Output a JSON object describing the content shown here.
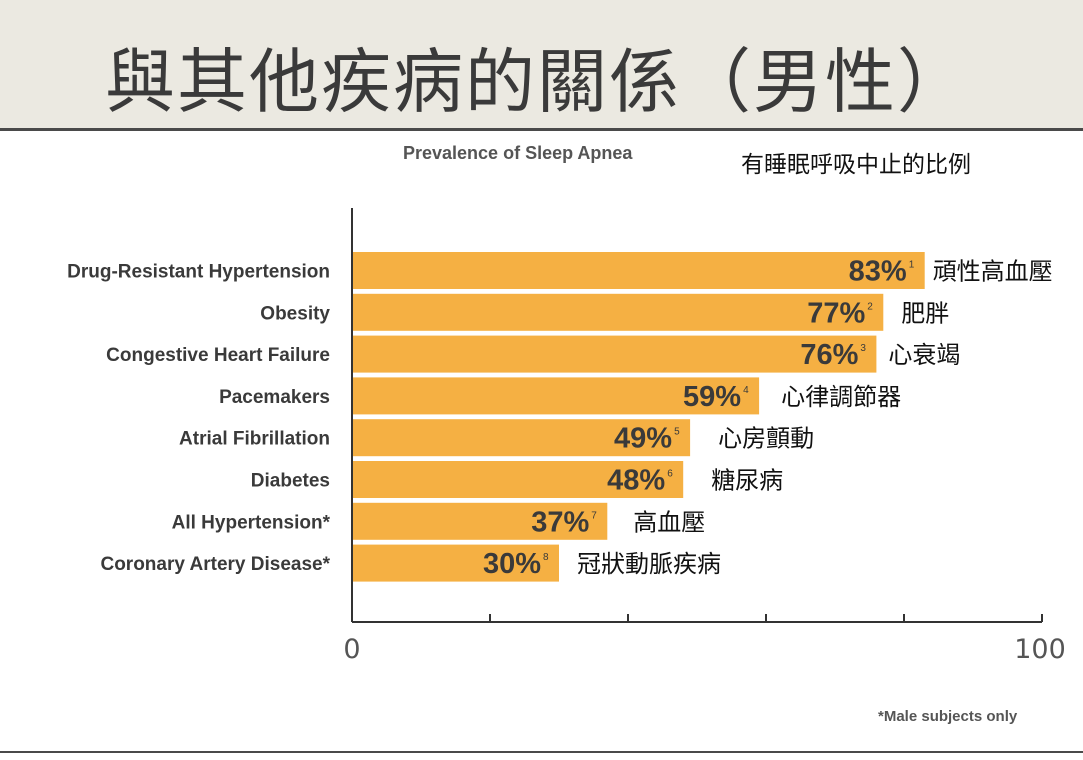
{
  "slide": {
    "title": "與其他疾病的關係（男性）"
  },
  "chart_data": {
    "type": "bar",
    "orientation": "horizontal",
    "title": "Prevalence of Sleep Apnea",
    "subtitle": "有睡眠呼吸中止的比例",
    "categories": [
      "Drug-Resistant Hypertension",
      "Obesity",
      "Congestive Heart Failure",
      "Pacemakers",
      "Atrial Fibrillation",
      "Diabetes",
      "All Hypertension*",
      "Coronary Artery Disease*"
    ],
    "categories_zh": [
      "頑性高血壓",
      "肥胖",
      "心衰竭",
      "心律調節器",
      "心房顫動",
      "糖尿病",
      "高血壓",
      "冠狀動脈疾病"
    ],
    "values": [
      83,
      77,
      76,
      59,
      49,
      48,
      37,
      30
    ],
    "value_labels": [
      "83%",
      "77%",
      "76%",
      "59%",
      "49%",
      "48%",
      "37%",
      "30%"
    ],
    "footnote_refs": [
      "1",
      "2",
      "3",
      "4",
      "5",
      "6",
      "7",
      "8"
    ],
    "xlim": [
      0,
      100
    ],
    "x_tick_labels": [
      "0",
      "100"
    ],
    "x_ticks": [
      0,
      20,
      40,
      60,
      80,
      100
    ],
    "grid": false,
    "legend": "none",
    "footnote": "*Male subjects only",
    "colors": {
      "bar": "#f5b043",
      "value_text": "#3a3a3a",
      "axis": "#333333",
      "label": "#3a3a3a"
    }
  }
}
